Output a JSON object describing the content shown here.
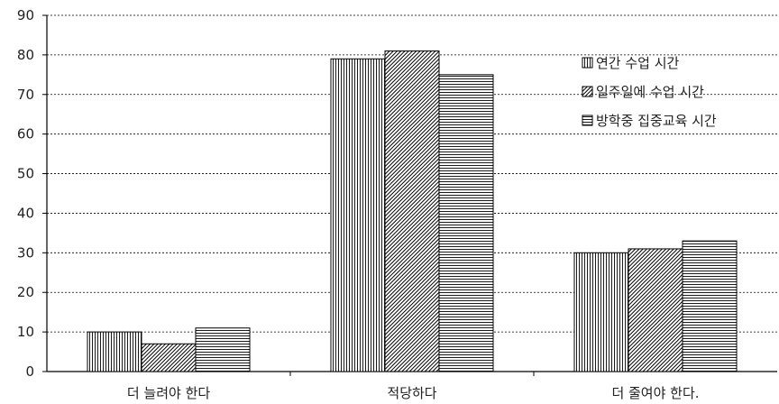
{
  "chart_data": {
    "type": "bar",
    "categories": [
      "더 늘려야 한다",
      "적당하다",
      "더 줄여야 한다."
    ],
    "series": [
      {
        "name": "연간 수업 시간",
        "values": [
          10,
          79,
          30
        ],
        "pattern": "vertical"
      },
      {
        "name": "일주일에 수업 시간",
        "values": [
          7,
          81,
          31
        ],
        "pattern": "diagonal"
      },
      {
        "name": "방학중 집중교육 시간",
        "values": [
          11,
          75,
          33
        ],
        "pattern": "horizontal"
      }
    ],
    "ylim": [
      0,
      90
    ],
    "yticks": [
      0,
      10,
      20,
      30,
      40,
      50,
      60,
      70,
      80,
      90
    ],
    "grid": true,
    "legend_position": "top-right"
  }
}
